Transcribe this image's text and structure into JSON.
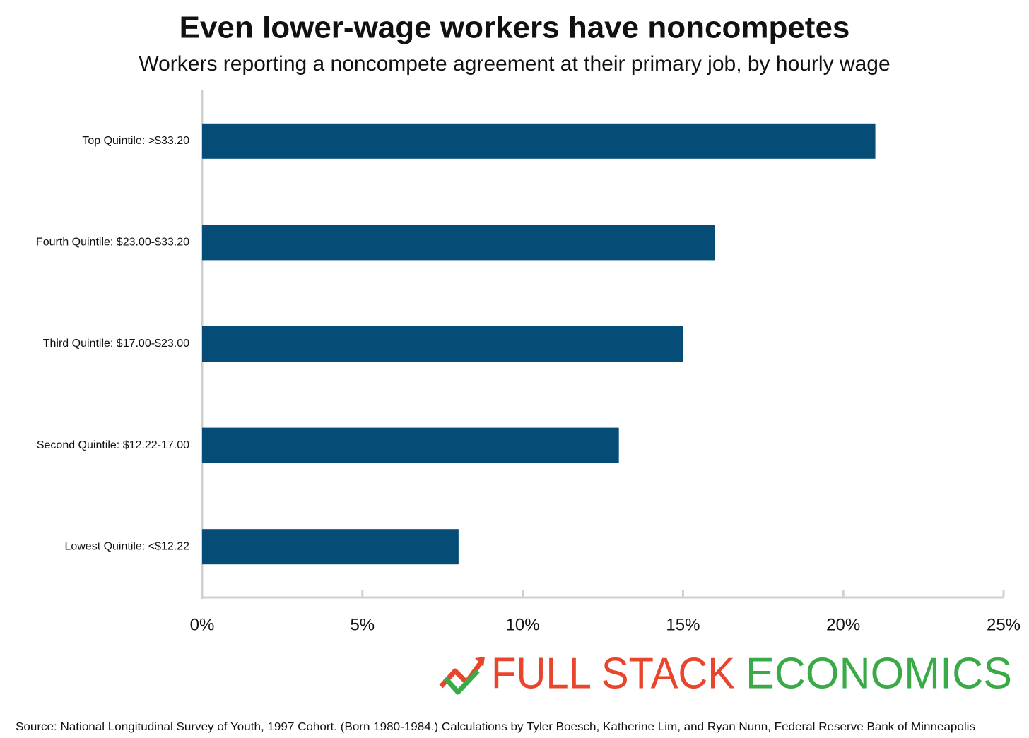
{
  "chart_data": {
    "type": "barh",
    "title": "Even lower-wage workers have noncompetes",
    "subtitle": "Workers reporting a noncompete agreement at their primary job, by hourly wage",
    "categories": [
      "Top Quintile: >$33.20",
      "Fourth Quintile: $23.00-$33.20",
      "Third Quintile: $17.00-$23.00",
      "Second Quintile: $12.22-17.00",
      "Lowest Quintile: <$12.22"
    ],
    "values": [
      21,
      16,
      15,
      13,
      8
    ],
    "color": "#054d76",
    "xlim": [
      0,
      25
    ],
    "xticks": [
      {
        "value": 0,
        "label": "0%"
      },
      {
        "value": 5,
        "label": "5%"
      },
      {
        "value": 10,
        "label": "10%"
      },
      {
        "value": 15,
        "label": "15%"
      },
      {
        "value": 20,
        "label": "20%"
      },
      {
        "value": 25,
        "label": "25%"
      }
    ],
    "logo": [
      "FULL STACK",
      "ECONOMICS"
    ],
    "source": "Source: National Longitudinal Survey of Youth, 1997 Cohort. (Born 1980-1984.) Calculations by Tyler Boesch, Katherine Lim, and Ryan Nunn, Federal Reserve Bank of Minneapolis"
  }
}
